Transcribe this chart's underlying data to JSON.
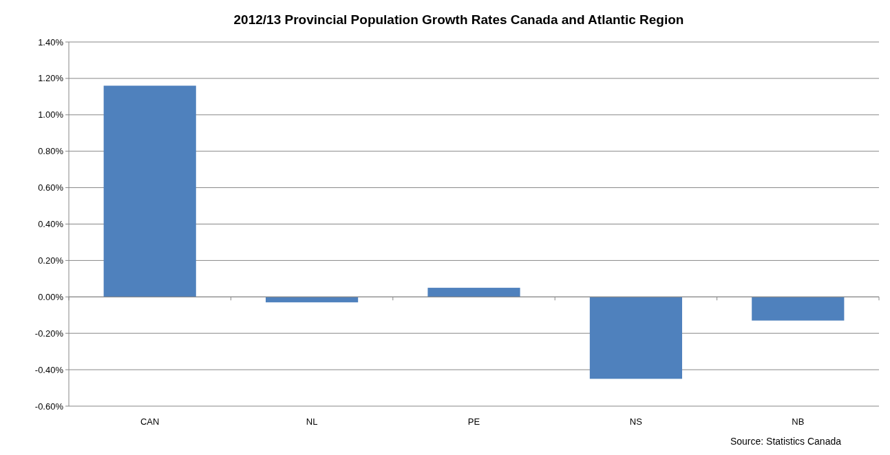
{
  "chart_data": {
    "type": "bar",
    "title": "2012/13 Provincial Population  Growth Rates Canada and Atlantic Region",
    "categories": [
      "CAN",
      "NL",
      "PE",
      "NS",
      "NB"
    ],
    "values": [
      1.16,
      -0.03,
      0.05,
      -0.45,
      -0.13
    ],
    "color": "#4f81bd",
    "ylim": [
      -0.6,
      1.4
    ],
    "yticks": [
      {
        "value": -0.6,
        "label": "-0.60%"
      },
      {
        "value": -0.4,
        "label": "-0.40%"
      },
      {
        "value": -0.2,
        "label": "-0.20%"
      },
      {
        "value": 0,
        "label": "0.00%"
      },
      {
        "value": 0.2,
        "label": "0.20%"
      },
      {
        "value": 0.4,
        "label": "0.40%"
      },
      {
        "value": 0.6,
        "label": "0.60%"
      },
      {
        "value": 0.8,
        "label": "0.80%"
      },
      {
        "value": 1.0,
        "label": "1.00%"
      },
      {
        "value": 1.2,
        "label": "1.20%"
      },
      {
        "value": 1.4,
        "label": "1.40%"
      }
    ],
    "grid": "y",
    "annotations": [
      "Source: Statistics Canada"
    ]
  }
}
